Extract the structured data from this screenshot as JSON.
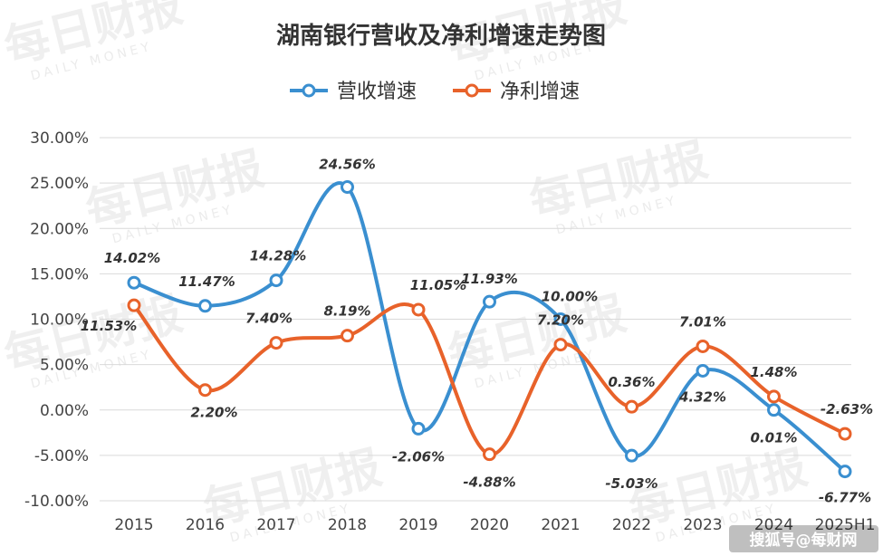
{
  "chart_data": {
    "type": "line",
    "title": "湖南银行营收及净利增速走势图",
    "categories": [
      "2015",
      "2016",
      "2017",
      "2018",
      "2019",
      "2020",
      "2021",
      "2022",
      "2023",
      "2024",
      "2025H1"
    ],
    "ylim": [
      -10,
      30
    ],
    "yticks": [
      "30.00%",
      "25.00%",
      "20.00%",
      "15.00%",
      "10.00%",
      "5.00%",
      "0.00%",
      "-5.00%",
      "-10.00%"
    ],
    "grid": true,
    "legend_position": "top-center",
    "series": [
      {
        "name": "营收增速",
        "color": "#3a8fd0",
        "values": [
          14.02,
          11.47,
          14.28,
          24.56,
          -2.06,
          11.93,
          10.0,
          -5.03,
          4.32,
          0.01,
          -6.77
        ],
        "labels": [
          "14.02%",
          "11.47%",
          "14.28%",
          "24.56%",
          "-2.06%",
          "11.93%",
          "10.00%",
          "-5.03%",
          "4.32%",
          "0.01%",
          "-6.77%"
        ]
      },
      {
        "name": "净利增速",
        "color": "#e8622a",
        "values": [
          11.53,
          2.2,
          7.4,
          8.19,
          11.05,
          -4.88,
          7.2,
          0.36,
          7.01,
          1.48,
          -2.63
        ],
        "labels": [
          "11.53%",
          "2.20%",
          "7.40%",
          "8.19%",
          "11.05%",
          "-4.88%",
          "7.20%",
          "0.36%",
          "7.01%",
          "1.48%",
          "-2.63%"
        ]
      }
    ]
  },
  "watermark": {
    "text": "每日财报",
    "subtext": "DAILY MONEY"
  },
  "credit": "搜狐号@每财网"
}
